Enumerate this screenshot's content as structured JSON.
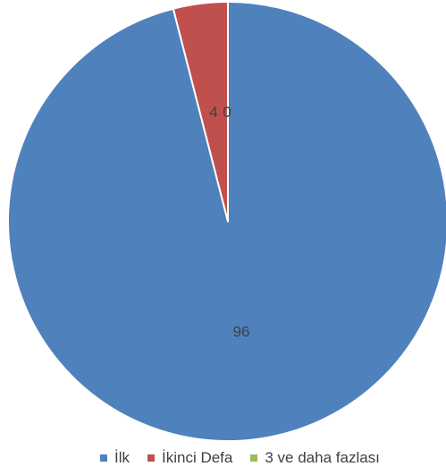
{
  "chart_data": {
    "type": "pie",
    "categories": [
      "İlk",
      "İkinci Defa",
      "3 ve daha fazlası"
    ],
    "values": [
      96,
      4,
      0
    ],
    "data_labels": [
      "96",
      "4",
      "0"
    ],
    "colors": [
      "#4f81bd",
      "#c0504d",
      "#9bbb59"
    ],
    "start_angle": "12 o'clock",
    "direction": "clockwise",
    "legend_position": "bottom"
  }
}
